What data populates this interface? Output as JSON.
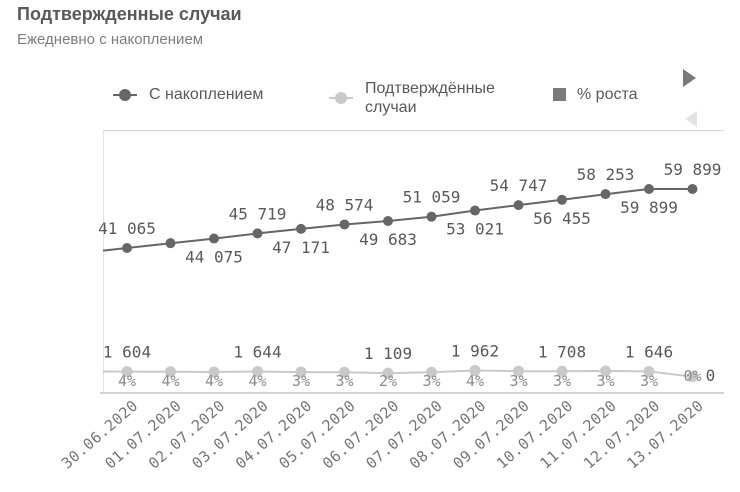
{
  "header": {
    "title": "Подтвержденные случаи",
    "subtitle": "Ежедневно с накоплением"
  },
  "legend": {
    "items": [
      {
        "label": "С накоплением",
        "marker": "dot-on-line",
        "color": "#666666"
      },
      {
        "label": "Подтверждённые случаи",
        "marker": "dot-on-line",
        "color": "#c9c9c9"
      },
      {
        "label": "% роста",
        "marker": "square",
        "color": "#7a7a7a"
      }
    ],
    "scroll_next_icon": "triangle-right",
    "scroll_prev_icon": "triangle-left-disabled"
  },
  "chart_data": {
    "type": "line",
    "title": "Подтвержденные случаи",
    "subtitle": "Ежедневно с накоплением",
    "legend_position": "top",
    "grid": "left-edge-line-and-bottom-axis-only",
    "ylim": [
      0,
      62000
    ],
    "x": [
      "30.06.2020",
      "01.07.2020",
      "02.07.2020",
      "03.07.2020",
      "04.07.2020",
      "05.07.2020",
      "06.07.2020",
      "07.07.2020",
      "08.07.2020",
      "09.07.2020",
      "10.07.2020",
      "11.07.2020",
      "12.07.2020",
      "13.07.2020"
    ],
    "series": [
      {
        "name": "С накоплением",
        "type": "line",
        "color": "#666666",
        "values": [
          41065,
          42600,
          44075,
          45719,
          47171,
          48574,
          49683,
          51059,
          53021,
          54747,
          56455,
          58253,
          59899,
          59899
        ],
        "labels": [
          "41 065",
          null,
          "44 075",
          "45 719",
          "47 171",
          "48 574",
          "49 683",
          "51 059",
          "53 021",
          "54 747",
          "56 455",
          "58 253",
          "59 899",
          "59 899"
        ],
        "label_side": [
          "above",
          null,
          "below",
          "above",
          "below",
          "above",
          "below",
          "above",
          "below",
          "above",
          "below",
          "above",
          "below",
          "above"
        ]
      },
      {
        "name": "Подтверждённые случаи",
        "type": "line",
        "color": "#c9c9c9",
        "values": [
          1604,
          1535,
          1475,
          1644,
          1452,
          1403,
          1109,
          1376,
          1962,
          1726,
          1708,
          1798,
          1646,
          0
        ],
        "labels": [
          "1 604",
          null,
          null,
          "1 644",
          null,
          null,
          "1 109",
          null,
          "1 962",
          null,
          "1 708",
          null,
          "1 646",
          "0"
        ]
      },
      {
        "name": "% роста",
        "type": "label-only",
        "color": "#8c8c8c",
        "labels": [
          "4%",
          "4%",
          "4%",
          "4%",
          "3%",
          "3%",
          "2%",
          "3%",
          "4%",
          "3%",
          "3%",
          "3%",
          "3%",
          "0%"
        ]
      }
    ]
  },
  "colors": {
    "title": "#595959",
    "subtitle": "#7d7d7d",
    "value_label": "#595959",
    "percent_label": "#8c8c8c",
    "date_label": "#757575",
    "axis_line": "#c6c6c6",
    "gridline": "#e4e4e4",
    "separator": "#d9d9d9"
  }
}
